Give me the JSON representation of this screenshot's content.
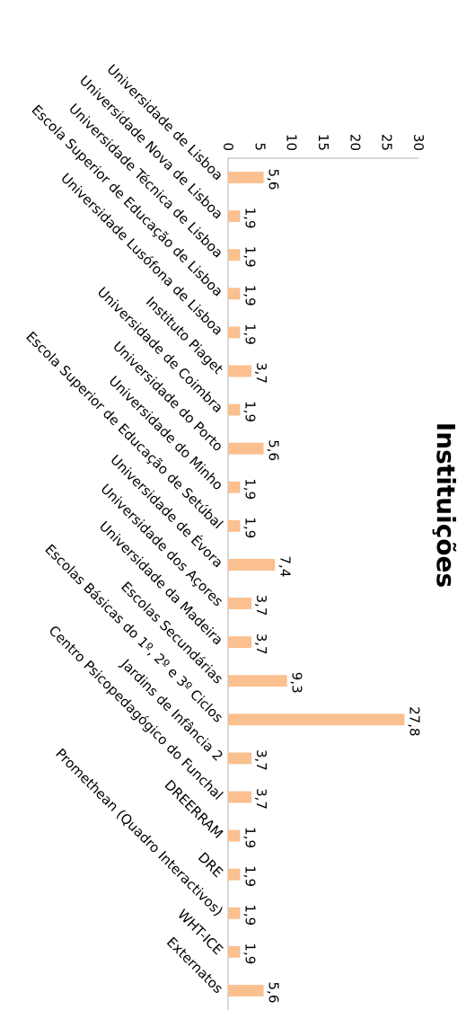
{
  "chart_data": {
    "type": "bar",
    "orientation": "horizontal",
    "title": "Instituições",
    "xlabel": "",
    "ylabel": "",
    "xlim": [
      0,
      30
    ],
    "ticks": [
      "0",
      "5",
      "10",
      "15",
      "20",
      "25",
      "30"
    ],
    "tick_values": [
      0,
      5,
      10,
      15,
      20,
      25,
      30
    ],
    "grid": false,
    "legend": "none",
    "bar_color": "#FAC090",
    "categories": [
      "Universidade de Lisboa",
      "Universidade Nova de Lisboa",
      "Universidade Técnica de Lisboa",
      "Escola Superior de Educação de Lisboa",
      "Universidade Lusófona de Lisboa",
      "Instituto Piaget",
      "Universidade de Coimbra",
      "Universidade do Porto",
      "Universidade do Minho",
      "Escola Superior de Educação de Setúbal",
      "Universidade de Évora",
      "Universidade dos Açores",
      "Universidade da Madeira",
      "Escolas Secundárias",
      "Escolas Básicas do 1º, 2º e 3º Ciclos",
      "Jardins de Infância 2",
      "Centro Psicopedagógico do Funchal",
      "DREERRAM",
      "DRE",
      "Promethean (Quadro Interactivos)",
      "WHT-ICE",
      "Externatos"
    ],
    "values": [
      5.6,
      1.9,
      1.9,
      1.9,
      1.9,
      3.7,
      1.9,
      5.6,
      1.9,
      1.9,
      7.4,
      3.7,
      3.7,
      9.3,
      27.8,
      3.7,
      3.7,
      1.9,
      1.9,
      1.9,
      1.9,
      5.6
    ],
    "data_labels": [
      "5,6",
      "1,9",
      "1,9",
      "1,9",
      "1,9",
      "3,7",
      "1,9",
      "5,6",
      "1,9",
      "1,9",
      "7,4",
      "3,7",
      "3,7",
      "9,3",
      "27,8",
      "3,7",
      "3,7",
      "1,9",
      "1,9",
      "1,9",
      "1,9",
      "5,6"
    ]
  }
}
